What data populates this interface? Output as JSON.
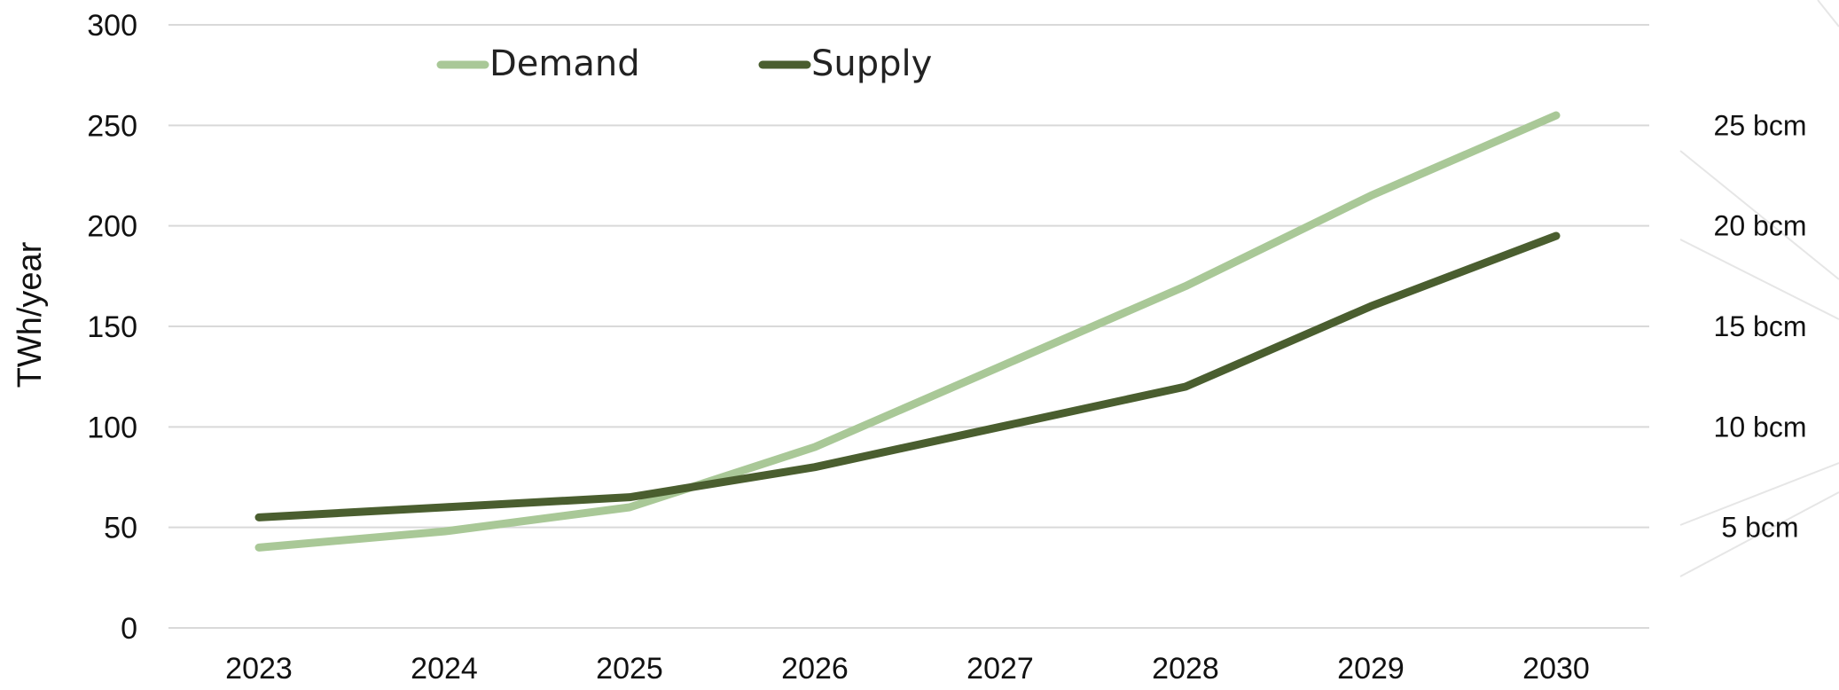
{
  "chart_data": {
    "type": "line",
    "title": "",
    "xlabel": "",
    "ylabel": "TWh/year",
    "ylim": [
      0,
      300
    ],
    "yticks": [
      0,
      50,
      100,
      150,
      200,
      250,
      300
    ],
    "x": [
      "2023",
      "2024",
      "2025",
      "2026",
      "2027",
      "2028",
      "2029",
      "2030"
    ],
    "series": [
      {
        "name": "Demand",
        "color": "#a9c897",
        "values": [
          40,
          48,
          60,
          90,
          130,
          170,
          215,
          255
        ]
      },
      {
        "name": "Supply",
        "color": "#4a5e2f",
        "values": [
          55,
          60,
          65,
          80,
          100,
          120,
          160,
          195
        ]
      }
    ],
    "secondary_labels": [
      {
        "label": "25 bcm",
        "y": 250
      },
      {
        "label": "20 bcm",
        "y": 200
      },
      {
        "label": "15 bcm",
        "y": 150
      },
      {
        "label": "10 bcm",
        "y": 100
      },
      {
        "label": "5 bcm",
        "y": 50
      }
    ],
    "grid": true,
    "legend_position": "top-left"
  }
}
